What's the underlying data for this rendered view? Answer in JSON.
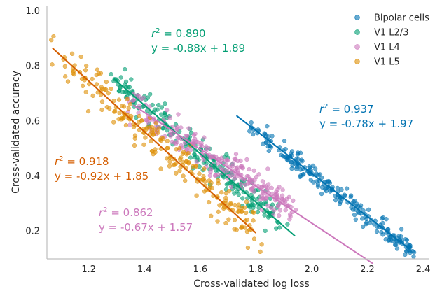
{
  "chart_data": {
    "type": "scatter",
    "title": "",
    "xlabel": "Cross-validated log loss",
    "ylabel": "Cross-validated accuracy",
    "xlim": [
      1.05,
      2.42
    ],
    "ylim": [
      0.1,
      1.02
    ],
    "xticks": [
      "1.2",
      "1.4",
      "1.6",
      "1.8",
      "2.0",
      "2.2",
      "2.4"
    ],
    "yticks": [
      "0.2",
      "0.4",
      "0.6",
      "0.8",
      "1.0"
    ],
    "grid": false,
    "legend_position": "top-right",
    "series": [
      {
        "name": "Bipolar cells",
        "color": "#0173b2",
        "r2_label": "r",
        "r2_value": " = 0.937",
        "equation": "y = -0.78x + 1.97",
        "fit": {
          "slope": -0.78,
          "intercept": 1.97,
          "x_range": [
            1.73,
            2.35
          ]
        },
        "x_center": [
          1.74,
          2.36
        ],
        "noise": 0.02,
        "n_points": 220,
        "seed": 11
      },
      {
        "name": "V1 L2/3",
        "color": "#029e73",
        "r2_label": "r",
        "r2_value": " = 0.890",
        "equation": "y = -0.88x + 1.89",
        "fit": {
          "slope": -0.88,
          "intercept": 1.89,
          "x_range": [
            1.29,
            1.94
          ]
        },
        "x_center": [
          1.28,
          1.9
        ],
        "noise": 0.028,
        "n_points": 230,
        "seed": 23
      },
      {
        "name": "V1 L4",
        "color": "#cc78bc",
        "r2_label": "r",
        "r2_value": " = 0.862",
        "equation": "y = -0.67x + 1.57",
        "fit": {
          "slope": -0.67,
          "intercept": 1.57,
          "x_range": [
            1.36,
            2.22
          ]
        },
        "x_center": [
          1.33,
          1.93
        ],
        "noise": 0.03,
        "n_points": 230,
        "seed": 37
      },
      {
        "name": "V1 L5",
        "color": "#de8f05",
        "fit_color": "#d55e00",
        "r2_label": "r",
        "r2_value": " = 0.918",
        "equation": "y = -0.92x + 1.85",
        "fit": {
          "slope": -0.92,
          "intercept": 1.85,
          "x_range": [
            1.07,
            1.8
          ]
        },
        "x_center": [
          1.06,
          1.8
        ],
        "noise": 0.035,
        "n_points": 230,
        "seed": 51
      }
    ]
  }
}
